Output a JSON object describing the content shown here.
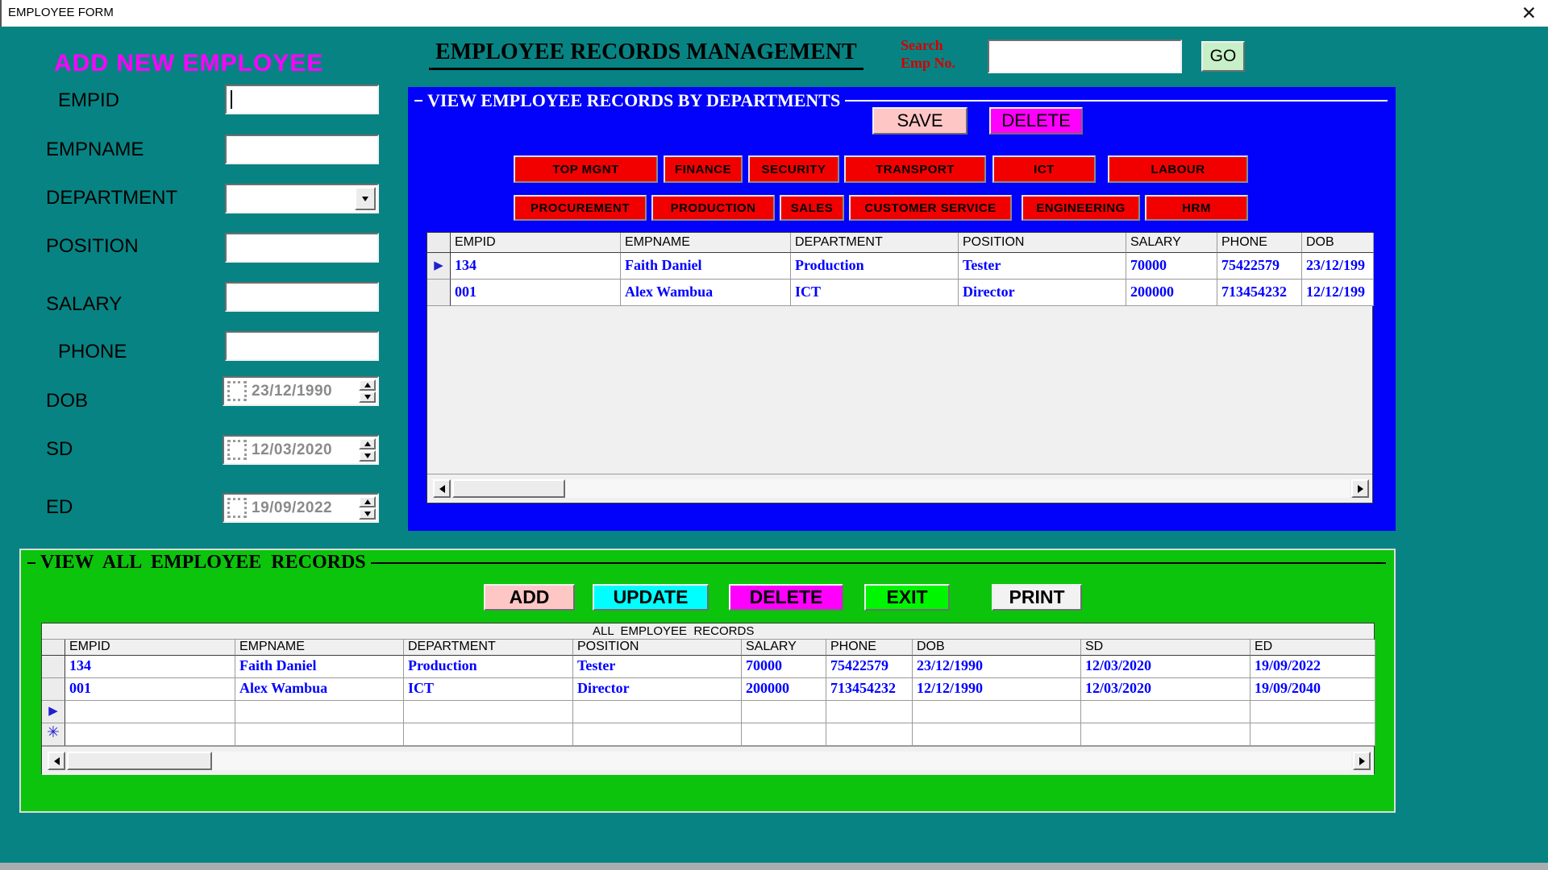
{
  "window": {
    "title": "EMPLOYEE FORM",
    "close_label": "✕"
  },
  "add_form": {
    "heading": "ADD NEW EMPLOYEE",
    "fields": [
      {
        "label": "EMPID",
        "type": "text",
        "value": ""
      },
      {
        "label": "EMPNAME",
        "type": "text",
        "value": ""
      },
      {
        "label": "DEPARTMENT",
        "type": "combo",
        "value": ""
      },
      {
        "label": "POSITION",
        "type": "text",
        "value": ""
      },
      {
        "label": "SALARY",
        "type": "text",
        "value": ""
      },
      {
        "label": "PHONE",
        "type": "text",
        "value": ""
      },
      {
        "label": "DOB",
        "type": "date",
        "value": "23/12/1990"
      },
      {
        "label": "SD",
        "type": "date",
        "value": "12/03/2020"
      },
      {
        "label": "ED",
        "type": "date",
        "value": "19/09/2022"
      }
    ]
  },
  "header": {
    "title": "EMPLOYEE RECORDS MANAGEMENT",
    "search_label_line1": "Search",
    "search_label_line2": "Emp No.",
    "search_value": "",
    "go_label": "GO"
  },
  "departments_panel": {
    "title": "VIEW EMPLOYEE RECORDS BY DEPARTMENTS",
    "save_label": "SAVE",
    "delete_label": "DELETE",
    "department_buttons_row1": [
      "TOP MGNT",
      "FINANCE",
      "SECURITY",
      "TRANSPORT",
      "ICT",
      "LABOUR"
    ],
    "department_buttons_row2": [
      "PROCUREMENT",
      "PRODUCTION",
      "SALES",
      "CUSTOMER SERVICE",
      "ENGINEERING",
      "HRM"
    ],
    "grid": {
      "columns": [
        "EMPID",
        "EMPNAME",
        "DEPARTMENT",
        "POSITION",
        "SALARY",
        "PHONE",
        "DOB"
      ],
      "rows": [
        {
          "selector": "▶",
          "cells": [
            "134",
            "Faith Daniel",
            "Production",
            "Tester",
            "70000",
            "75422579",
            "23/12/199"
          ]
        },
        {
          "selector": "",
          "cells": [
            "001",
            "Alex Wambua",
            "ICT",
            "Director",
            "200000",
            "713454232",
            "12/12/199"
          ]
        }
      ]
    }
  },
  "all_records_panel": {
    "title": "VIEW  ALL  EMPLOYEE  RECORDS",
    "action_buttons": [
      "ADD",
      "UPDATE",
      "DELETE",
      "EXIT",
      "PRINT"
    ],
    "table_caption": "ALL  EMPLOYEE  RECORDS",
    "grid": {
      "columns": [
        "EMPID",
        "EMPNAME",
        "DEPARTMENT",
        "POSITION",
        "SALARY",
        "PHONE",
        "DOB",
        "SD",
        "ED"
      ],
      "rows": [
        {
          "selector": "",
          "cells": [
            "134",
            "Faith Daniel",
            "Production",
            "Tester",
            "70000",
            "75422579",
            "23/12/1990",
            "12/03/2020",
            "19/09/2022"
          ]
        },
        {
          "selector": "",
          "cells": [
            "001",
            "Alex Wambua",
            "ICT",
            "Director",
            "200000",
            "713454232",
            "12/12/1990",
            "12/03/2020",
            "19/09/2040"
          ]
        },
        {
          "selector": "▶",
          "cells": [
            "",
            "",
            "",
            "",
            "",
            "",
            "",
            "",
            ""
          ]
        },
        {
          "selector": "✳",
          "cells": [
            "",
            "",
            "",
            "",
            "",
            "",
            "",
            "",
            ""
          ]
        }
      ]
    }
  },
  "colors": {
    "background_teal": "#088383",
    "panel_blue": "#0202fa",
    "panel_green": "#0cc40c",
    "dept_button_red": "#f20000",
    "save_pink": "#ffc6c6",
    "delete_magenta": "#ff00ff",
    "update_cyan": "#00ffff",
    "exit_green": "#00f500",
    "print_white": "#f2f2f2",
    "go_green": "#c8f0c8",
    "record_text_blue": "#0000ff",
    "search_label_red": "#d40000",
    "heading_magenta": "#ff00ff",
    "date_text_gray": "#8a8a8a"
  }
}
